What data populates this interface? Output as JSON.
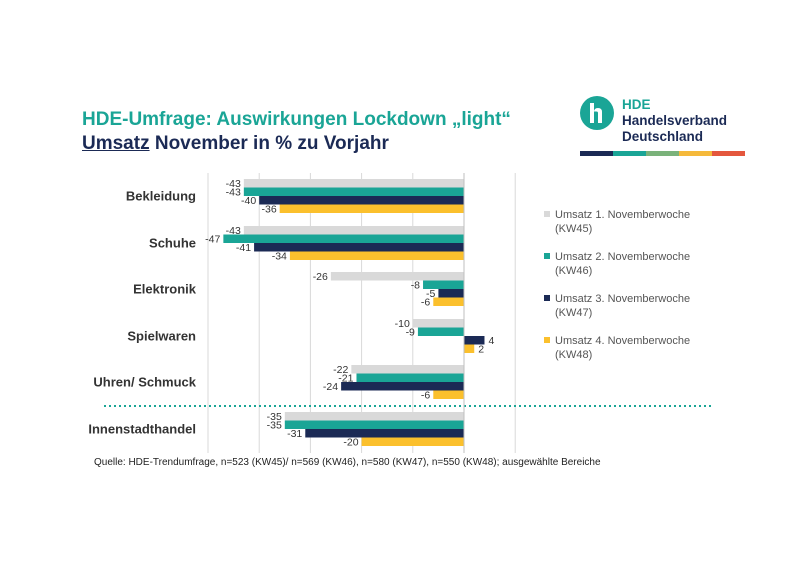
{
  "header": {
    "title_line1": "HDE-Umfrage: Auswirkungen Lockdown „light“",
    "title_line2_underlined": "Umsatz",
    "title_line2_rest": " November in % zu Vorjahr"
  },
  "logo": {
    "line1": "HDE",
    "line2": "Handelsverband",
    "line3": "Deutschland",
    "icon": "hde-h-logo-icon",
    "bar_colors": [
      "#1b2a55",
      "#1aa596",
      "#7ab27a",
      "#f5b93b",
      "#e4573d"
    ]
  },
  "colors": {
    "kw45": "#d9d9d9",
    "kw46": "#1aa596",
    "kw47": "#1b2a55",
    "kw48": "#fbc02d",
    "separator": "#1aa596",
    "grid": "#d9d9d9"
  },
  "chart_data": {
    "type": "bar",
    "orientation": "horizontal",
    "title": "Umsatz November in % zu Vorjahr",
    "xlim": [
      -50,
      10
    ],
    "grid": true,
    "legend_position": "right",
    "categories": [
      "Bekleidung",
      "Schuhe",
      "Elektronik",
      "Spielwaren",
      "Uhren/ Schmuck",
      "Innenstadthandel"
    ],
    "series": [
      {
        "name": "Umsatz 1. Novemberwoche (KW45)",
        "values": [
          -43,
          -43,
          -26,
          -10,
          -22,
          -35
        ]
      },
      {
        "name": "Umsatz 2. Novemberwoche (KW46)",
        "values": [
          -43,
          -47,
          -8,
          -9,
          -21,
          -35
        ]
      },
      {
        "name": "Umsatz 3. Novemberwoche (KW47)",
        "values": [
          -40,
          -41,
          -5,
          4,
          -24,
          -31
        ]
      },
      {
        "name": "Umsatz 4. Novemberwoche (KW48)",
        "values": [
          -36,
          -34,
          -6,
          2,
          -6,
          -20
        ]
      }
    ],
    "separator_before": "Innenstadthandel"
  },
  "legend": [
    {
      "line1": "Umsatz 1. Novemberwoche",
      "line2": "(KW45)",
      "color": "#d9d9d9"
    },
    {
      "line1": "Umsatz 2. Novemberwoche",
      "line2": "(KW46)",
      "color": "#1aa596"
    },
    {
      "line1": "Umsatz 3. Novemberwoche",
      "line2": "(KW47)",
      "color": "#1b2a55"
    },
    {
      "line1": "Umsatz 4. Novemberwoche",
      "line2": "(KW48)",
      "color": "#fbc02d"
    }
  ],
  "source": "Quelle: HDE-Trendumfrage, n=523 (KW45)/ n=569 (KW46), n=580 (KW47), n=550 (KW48); ausgewählte Bereiche"
}
